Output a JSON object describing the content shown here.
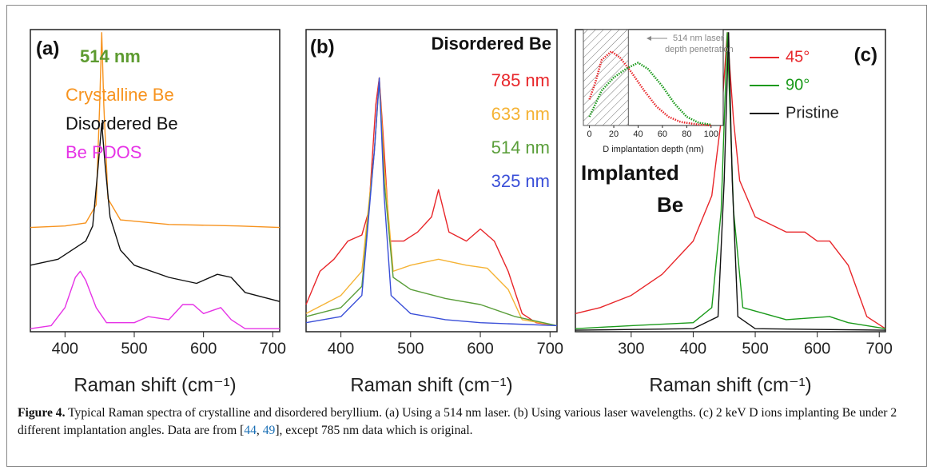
{
  "chart_data": [
    {
      "type": "line",
      "panel_label": "(a)",
      "legend_title": "514 nm",
      "legend_title_color": "#5d9b30",
      "legend_style": "text",
      "xlabel": "Raman shift (cm⁻¹)",
      "xlim": [
        350,
        710
      ],
      "xticks": [
        400,
        500,
        600,
        700
      ],
      "ylim": [
        0,
        1
      ],
      "series": [
        {
          "name": "Crystalline Be",
          "color": "#f7931e",
          "x": [
            350,
            400,
            430,
            445,
            450,
            453,
            456,
            462,
            480,
            550,
            650,
            710
          ],
          "values": [
            0.345,
            0.35,
            0.36,
            0.42,
            0.75,
            0.99,
            0.75,
            0.44,
            0.37,
            0.355,
            0.35,
            0.345
          ]
        },
        {
          "name": "Disordered Be",
          "color": "#111111",
          "x": [
            350,
            390,
            410,
            430,
            440,
            448,
            453,
            458,
            465,
            480,
            500,
            550,
            590,
            620,
            640,
            660,
            710
          ],
          "values": [
            0.22,
            0.24,
            0.27,
            0.3,
            0.35,
            0.55,
            0.69,
            0.55,
            0.38,
            0.27,
            0.22,
            0.18,
            0.16,
            0.19,
            0.18,
            0.13,
            0.1
          ]
        },
        {
          "name": "Be PDOS",
          "color": "#e633e6",
          "x": [
            350,
            380,
            400,
            415,
            422,
            430,
            445,
            460,
            500,
            520,
            550,
            570,
            585,
            600,
            625,
            640,
            660,
            710
          ],
          "values": [
            0.01,
            0.02,
            0.08,
            0.18,
            0.2,
            0.17,
            0.08,
            0.03,
            0.03,
            0.05,
            0.04,
            0.09,
            0.09,
            0.06,
            0.08,
            0.04,
            0.01,
            0.01
          ]
        }
      ]
    },
    {
      "type": "line",
      "panel_label": "(b)",
      "legend_title": "Disordered Be",
      "legend_title_color": "#111111",
      "legend_style": "text",
      "xlabel": "Raman shift (cm⁻¹)",
      "xlim": [
        350,
        710
      ],
      "xticks": [
        400,
        500,
        600,
        700
      ],
      "ylim": [
        0,
        1
      ],
      "series": [
        {
          "name": "785 nm",
          "color": "#e8262a",
          "x": [
            350,
            370,
            390,
            410,
            430,
            440,
            450,
            455,
            462,
            470,
            490,
            510,
            530,
            540,
            555,
            580,
            600,
            620,
            640,
            660,
            680,
            710
          ],
          "values": [
            0.09,
            0.2,
            0.24,
            0.3,
            0.32,
            0.4,
            0.75,
            0.84,
            0.6,
            0.3,
            0.3,
            0.33,
            0.38,
            0.47,
            0.33,
            0.3,
            0.34,
            0.3,
            0.2,
            0.06,
            0.03,
            0.02
          ]
        },
        {
          "name": "633 nm",
          "color": "#f5b335",
          "x": [
            350,
            400,
            430,
            448,
            455,
            462,
            475,
            500,
            540,
            580,
            610,
            640,
            660,
            710
          ],
          "values": [
            0.06,
            0.12,
            0.2,
            0.6,
            0.84,
            0.55,
            0.2,
            0.22,
            0.24,
            0.22,
            0.21,
            0.14,
            0.04,
            0.02
          ]
        },
        {
          "name": "514 nm",
          "color": "#5a9e3a",
          "x": [
            350,
            400,
            430,
            448,
            455,
            462,
            475,
            500,
            550,
            600,
            650,
            710
          ],
          "values": [
            0.05,
            0.08,
            0.15,
            0.6,
            0.83,
            0.5,
            0.18,
            0.14,
            0.11,
            0.09,
            0.05,
            0.02
          ]
        },
        {
          "name": "325 nm",
          "color": "#3a4fd8",
          "x": [
            350,
            400,
            430,
            448,
            455,
            462,
            472,
            500,
            550,
            600,
            710
          ],
          "values": [
            0.03,
            0.05,
            0.12,
            0.6,
            0.84,
            0.45,
            0.12,
            0.06,
            0.04,
            0.03,
            0.02
          ]
        }
      ]
    },
    {
      "type": "line",
      "panel_label": "(c)",
      "legend_style": "line",
      "annotation_lines": [
        "Implanted",
        "Be"
      ],
      "xlabel": "Raman shift (cm⁻¹)",
      "xlim": [
        210,
        710
      ],
      "xticks": [
        300,
        400,
        500,
        600,
        700
      ],
      "ylim": [
        0,
        1
      ],
      "series": [
        {
          "name": "45°",
          "color": "#e8262a",
          "x": [
            210,
            250,
            300,
            350,
            400,
            430,
            445,
            455,
            465,
            475,
            500,
            550,
            580,
            600,
            620,
            650,
            680,
            710
          ],
          "values": [
            0.06,
            0.08,
            0.12,
            0.19,
            0.3,
            0.45,
            0.7,
            0.99,
            0.7,
            0.5,
            0.38,
            0.33,
            0.33,
            0.3,
            0.3,
            0.22,
            0.05,
            0.01
          ]
        },
        {
          "name": "90°",
          "color": "#1a9a1a",
          "x": [
            210,
            300,
            400,
            430,
            445,
            455,
            465,
            480,
            550,
            620,
            650,
            710
          ],
          "values": [
            0.01,
            0.02,
            0.03,
            0.08,
            0.4,
            0.99,
            0.4,
            0.08,
            0.04,
            0.05,
            0.03,
            0.01
          ]
        },
        {
          "name": "Pristine",
          "color": "#111111",
          "x": [
            210,
            400,
            440,
            450,
            457,
            463,
            472,
            500,
            710
          ],
          "values": [
            0.005,
            0.01,
            0.05,
            0.5,
            0.99,
            0.5,
            0.05,
            0.01,
            0.005
          ]
        }
      ]
    },
    {
      "type": "line",
      "inset": true,
      "xlabel": "D implantation depth (nm)",
      "xlim": [
        -5,
        110
      ],
      "xticks": [
        0,
        20,
        40,
        60,
        80,
        100
      ],
      "ylim": [
        0,
        1.1
      ],
      "penetration_depth": 32,
      "annotation_lines": [
        "514 nm laser",
        "depth penetration"
      ],
      "series": [
        {
          "color": "#e8262a",
          "x": [
            0,
            5,
            10,
            18,
            25,
            35,
            45,
            55,
            65,
            75,
            90,
            100
          ],
          "values": [
            0.3,
            0.5,
            0.75,
            0.85,
            0.78,
            0.6,
            0.4,
            0.22,
            0.1,
            0.04,
            0.01,
            0
          ]
        },
        {
          "color": "#1a9a1a",
          "x": [
            0,
            10,
            20,
            30,
            40,
            48,
            60,
            70,
            80,
            90,
            100
          ],
          "values": [
            0.1,
            0.4,
            0.55,
            0.65,
            0.72,
            0.65,
            0.45,
            0.25,
            0.1,
            0.03,
            0.01
          ]
        }
      ]
    }
  ],
  "caption": {
    "label": "Figure 4.",
    "text": " Typical Raman spectra of crystalline and disordered beryllium. (a) Using a 514 nm laser. (b) Using various laser wavelengths. (c) 2 keV D ions implanting Be under 2 different implantation angles. Data are from [",
    "refs": [
      44,
      49
    ],
    "ref_separator": ", ",
    "text_end": "], except 785 nm data which is original."
  }
}
